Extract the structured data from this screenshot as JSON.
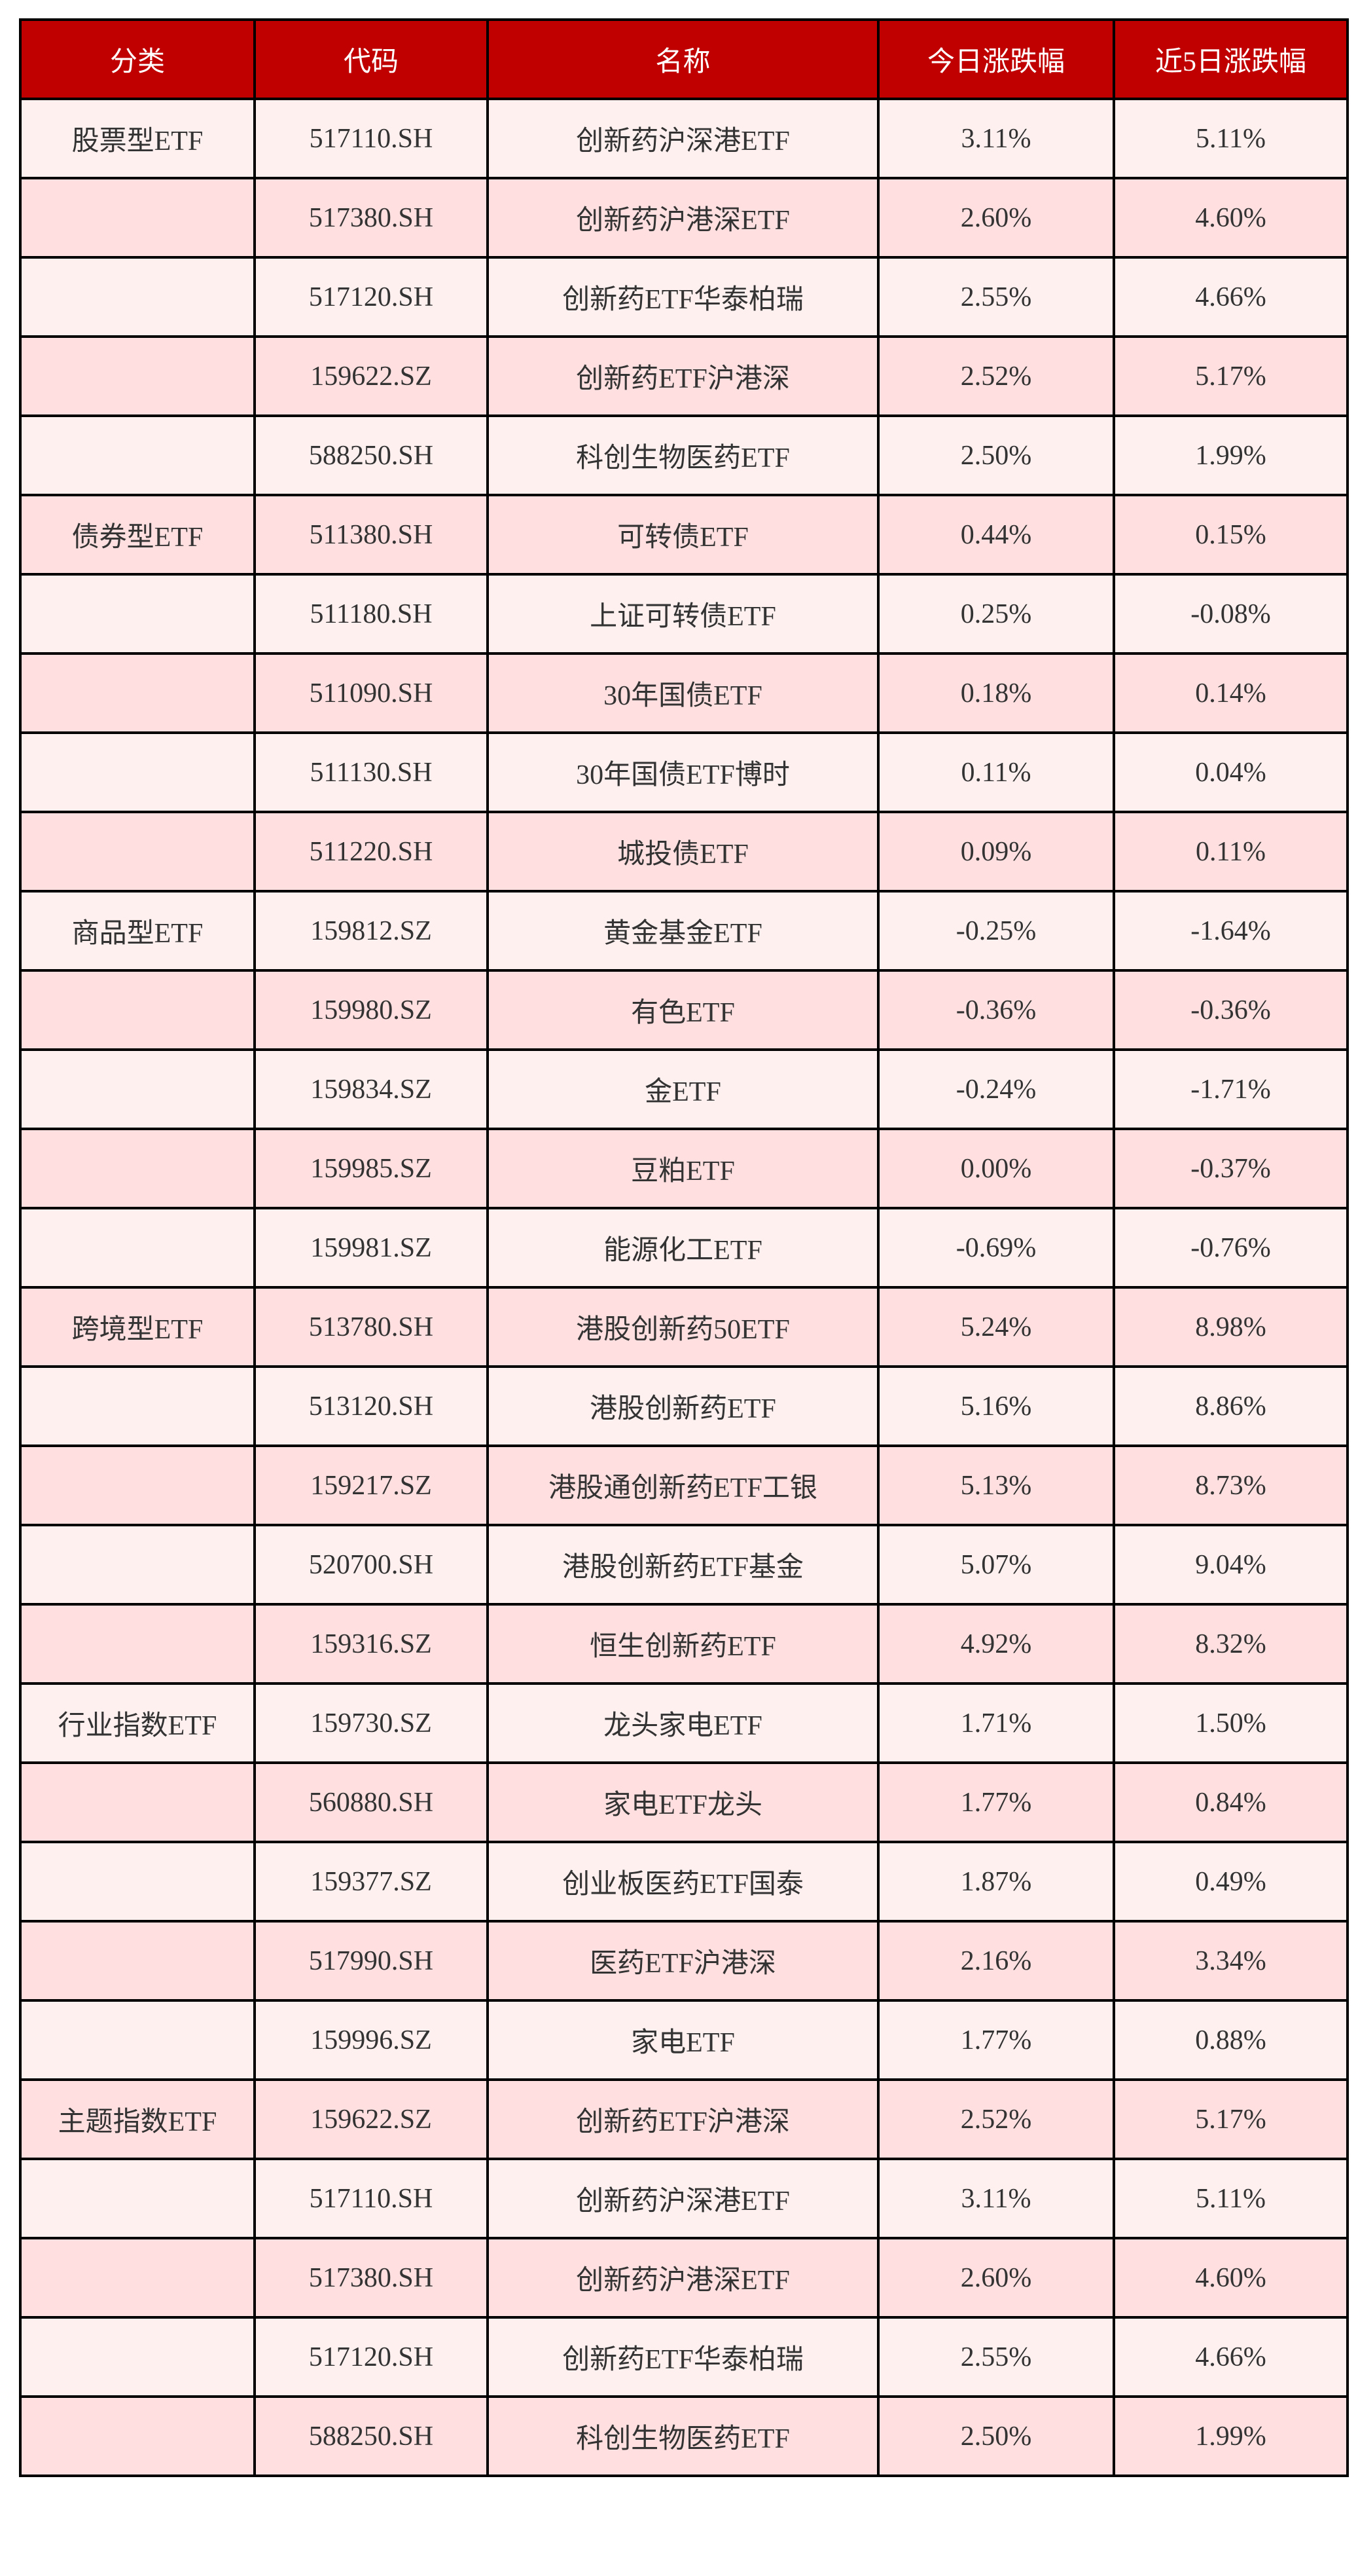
{
  "colors": {
    "header_bg": "#C00000",
    "row_odd": "#FFF0F0",
    "row_even": "#FFDFE0"
  },
  "headers": [
    "分类",
    "代码",
    "名称",
    "今日涨跌幅",
    "近5日涨跌幅"
  ],
  "rows": [
    [
      "股票型ETF",
      "517110.SH",
      "创新药沪深港ETF",
      "3.11%",
      "5.11%"
    ],
    [
      "",
      "517380.SH",
      "创新药沪港深ETF",
      "2.60%",
      "4.60%"
    ],
    [
      "",
      "517120.SH",
      "创新药ETF华泰柏瑞",
      "2.55%",
      "4.66%"
    ],
    [
      "",
      "159622.SZ",
      "创新药ETF沪港深",
      "2.52%",
      "5.17%"
    ],
    [
      "",
      "588250.SH",
      "科创生物医药ETF",
      "2.50%",
      "1.99%"
    ],
    [
      "债券型ETF",
      "511380.SH",
      "可转债ETF",
      "0.44%",
      "0.15%"
    ],
    [
      "",
      "511180.SH",
      "上证可转债ETF",
      "0.25%",
      "-0.08%"
    ],
    [
      "",
      "511090.SH",
      "30年国债ETF",
      "0.18%",
      "0.14%"
    ],
    [
      "",
      "511130.SH",
      "30年国债ETF博时",
      "0.11%",
      "0.04%"
    ],
    [
      "",
      "511220.SH",
      "城投债ETF",
      "0.09%",
      "0.11%"
    ],
    [
      "商品型ETF",
      "159812.SZ",
      "黄金基金ETF",
      "-0.25%",
      "-1.64%"
    ],
    [
      "",
      "159980.SZ",
      "有色ETF",
      "-0.36%",
      "-0.36%"
    ],
    [
      "",
      "159834.SZ",
      "金ETF",
      "-0.24%",
      "-1.71%"
    ],
    [
      "",
      "159985.SZ",
      "豆粕ETF",
      "0.00%",
      "-0.37%"
    ],
    [
      "",
      "159981.SZ",
      "能源化工ETF",
      "-0.69%",
      "-0.76%"
    ],
    [
      "跨境型ETF",
      "513780.SH",
      "港股创新药50ETF",
      "5.24%",
      "8.98%"
    ],
    [
      "",
      "513120.SH",
      "港股创新药ETF",
      "5.16%",
      "8.86%"
    ],
    [
      "",
      "159217.SZ",
      "港股通创新药ETF工银",
      "5.13%",
      "8.73%"
    ],
    [
      "",
      "520700.SH",
      "港股创新药ETF基金",
      "5.07%",
      "9.04%"
    ],
    [
      "",
      "159316.SZ",
      "恒生创新药ETF",
      "4.92%",
      "8.32%"
    ],
    [
      "行业指数ETF",
      "159730.SZ",
      "龙头家电ETF",
      "1.71%",
      "1.50%"
    ],
    [
      "",
      "560880.SH",
      "家电ETF龙头",
      "1.77%",
      "0.84%"
    ],
    [
      "",
      "159377.SZ",
      "创业板医药ETF国泰",
      "1.87%",
      "0.49%"
    ],
    [
      "",
      "517990.SH",
      "医药ETF沪港深",
      "2.16%",
      "3.34%"
    ],
    [
      "",
      "159996.SZ",
      "家电ETF",
      "1.77%",
      "0.88%"
    ],
    [
      "主题指数ETF",
      "159622.SZ",
      "创新药ETF沪港深",
      "2.52%",
      "5.17%"
    ],
    [
      "",
      "517110.SH",
      "创新药沪深港ETF",
      "3.11%",
      "5.11%"
    ],
    [
      "",
      "517380.SH",
      "创新药沪港深ETF",
      "2.60%",
      "4.60%"
    ],
    [
      "",
      "517120.SH",
      "创新药ETF华泰柏瑞",
      "2.55%",
      "4.66%"
    ],
    [
      "",
      "588250.SH",
      "科创生物医药ETF",
      "2.50%",
      "1.99%"
    ]
  ]
}
